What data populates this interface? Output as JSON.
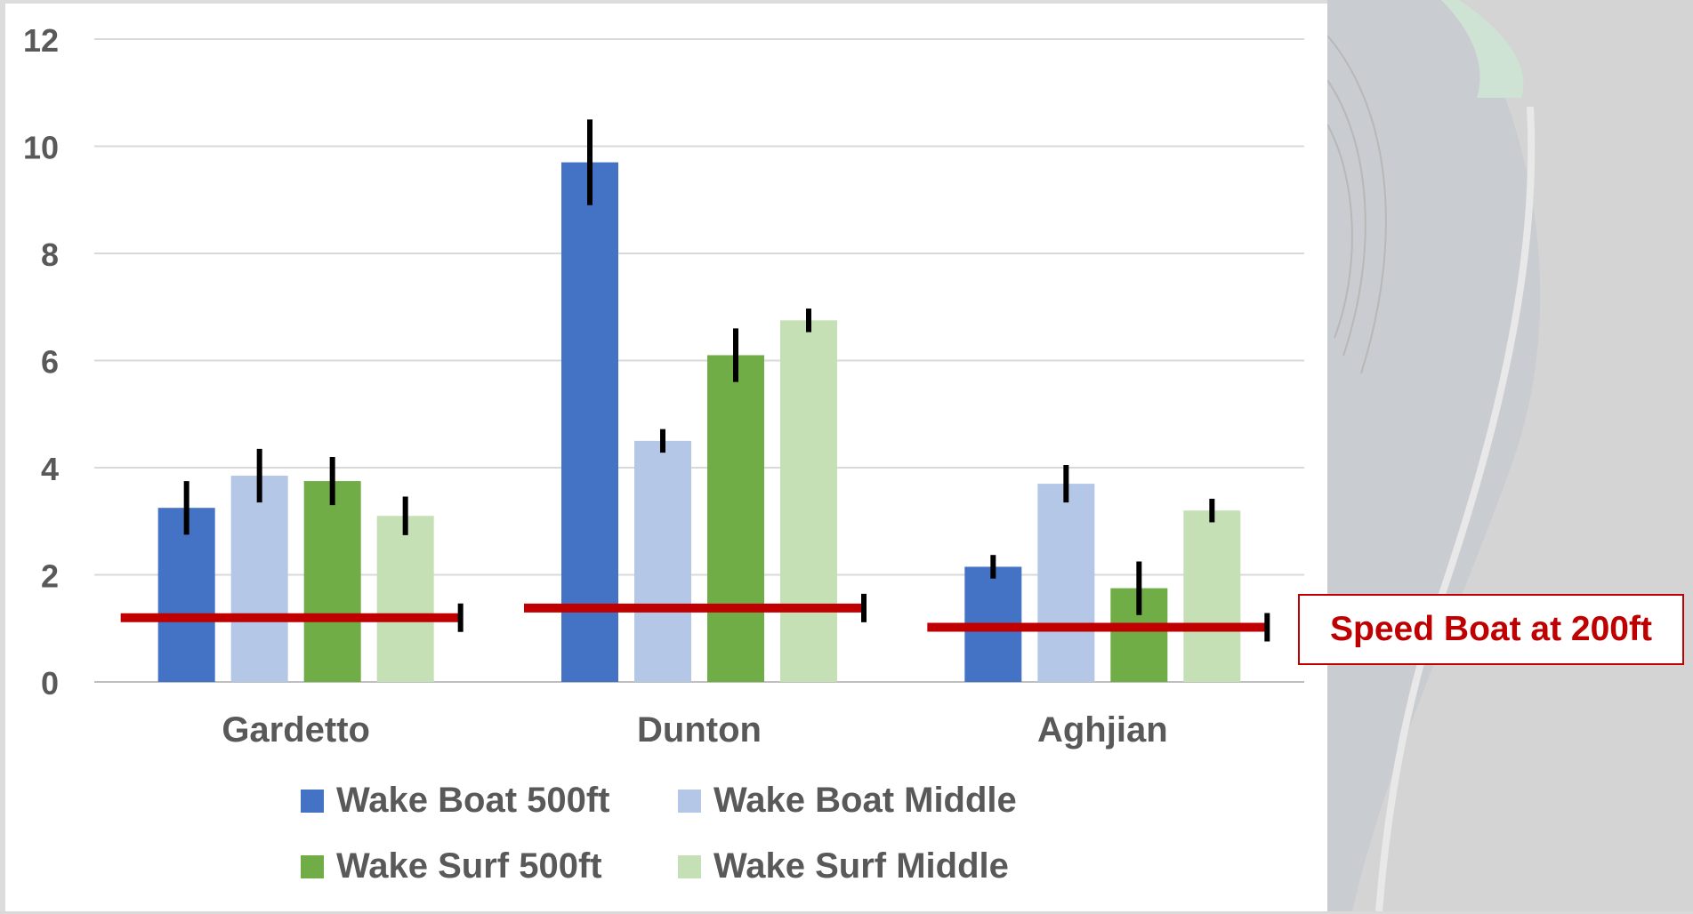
{
  "chart_data": {
    "type": "bar",
    "categories": [
      "Gardetto",
      "Dunton",
      "Aghjian"
    ],
    "ylim": [
      0,
      12
    ],
    "yticks": [
      0,
      2,
      4,
      6,
      8,
      10,
      12
    ],
    "grid": true,
    "legend_placement": "bottom",
    "series": [
      {
        "name": "Wake Boat 500ft",
        "color": "#4472c4",
        "values": [
          3.25,
          9.7,
          2.15
        ],
        "error": [
          0.5,
          0.8,
          0.22
        ]
      },
      {
        "name": "Wake Boat Middle",
        "color": "#b4c7e7",
        "values": [
          3.85,
          4.5,
          3.7
        ],
        "error": [
          0.5,
          0.22,
          0.35
        ]
      },
      {
        "name": "Wake Surf 500ft",
        "color": "#70ad47",
        "values": [
          3.75,
          6.1,
          1.75
        ],
        "error": [
          0.45,
          0.5,
          0.5
        ]
      },
      {
        "name": "Wake Surf Middle",
        "color": "#c5e0b4",
        "values": [
          3.1,
          6.75,
          3.2
        ],
        "error": [
          0.36,
          0.22,
          0.22
        ]
      }
    ],
    "reference_lines": {
      "name": "Speed Boat at 200ft",
      "color": "#c00000",
      "values": [
        1.2,
        1.38,
        1.02
      ]
    }
  }
}
